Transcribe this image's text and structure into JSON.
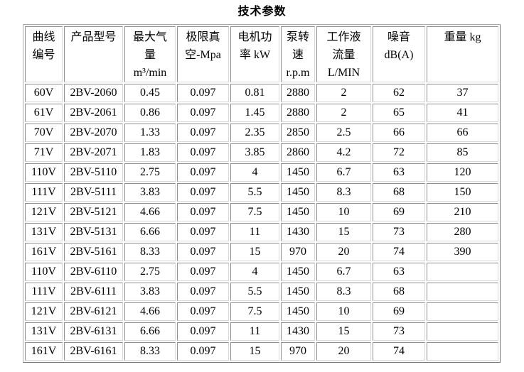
{
  "title": "技术参数",
  "table": {
    "headers": [
      "曲线\n编号",
      "产品型号",
      "最大气\n量\nm³/min",
      "极限真\n空-Mpa",
      "电机功\n率 kW",
      "泵转\n速\nr.p.m",
      "工作液\n流量\nL/MIN",
      "噪音\ndB(A)",
      "重量 kg"
    ],
    "rows": [
      [
        "60V",
        "2BV-2060",
        "0.45",
        "0.097",
        "0.81",
        "2880",
        "2",
        "62",
        "37"
      ],
      [
        "61V",
        "2BV-2061",
        "0.86",
        "0.097",
        "1.45",
        "2880",
        "2",
        "65",
        "41"
      ],
      [
        "70V",
        "2BV-2070",
        "1.33",
        "0.097",
        "2.35",
        "2850",
        "2.5",
        "66",
        "66"
      ],
      [
        "71V",
        "2BV-2071",
        "1.83",
        "0.097",
        "3.85",
        "2860",
        "4.2",
        "72",
        "85"
      ],
      [
        "110V",
        "2BV-5110",
        "2.75",
        "0.097",
        "4",
        "1450",
        "6.7",
        "63",
        "120"
      ],
      [
        "111V",
        "2BV-5111",
        "3.83",
        "0.097",
        "5.5",
        "1450",
        "8.3",
        "68",
        "150"
      ],
      [
        "121V",
        "2BV-5121",
        "4.66",
        "0.097",
        "7.5",
        "1450",
        "10",
        "69",
        "210"
      ],
      [
        "131V",
        "2BV-5131",
        "6.66",
        "0.097",
        "11",
        "1430",
        "15",
        "73",
        "280"
      ],
      [
        "161V",
        "2BV-5161",
        "8.33",
        "0.097",
        "15",
        "970",
        "20",
        "74",
        "390"
      ],
      [
        "110V",
        "2BV-6110",
        "2.75",
        "0.097",
        "4",
        "1450",
        "6.7",
        "63",
        ""
      ],
      [
        "111V",
        "2BV-6111",
        "3.83",
        "0.097",
        "5.5",
        "1450",
        "8.3",
        "68",
        ""
      ],
      [
        "121V",
        "2BV-6121",
        "4.66",
        "0.097",
        "7.5",
        "1450",
        "10",
        "69",
        ""
      ],
      [
        "131V",
        "2BV-6131",
        "6.66",
        "0.097",
        "11",
        "1430",
        "15",
        "73",
        ""
      ],
      [
        "161V",
        "2BV-6161",
        "8.33",
        "0.097",
        "15",
        "970",
        "20",
        "74",
        ""
      ]
    ]
  }
}
